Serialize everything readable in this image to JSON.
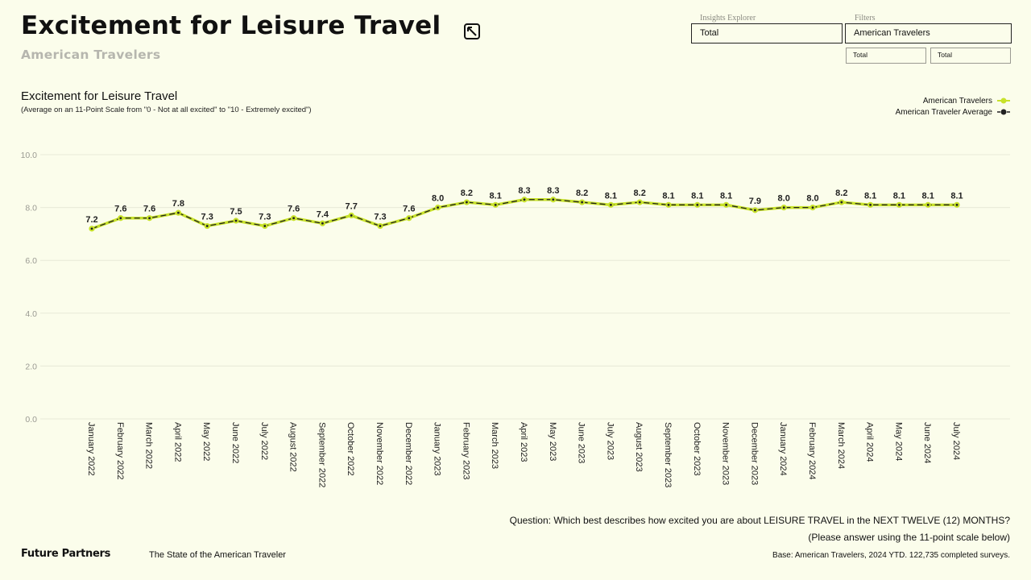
{
  "header": {
    "title": "Excitement for Leisure Travel",
    "subtitle": "American Travelers"
  },
  "controls": {
    "insights_label": "Insights Explorer",
    "insights_value": "Total",
    "filters_label": "Filters",
    "filters_value": "American Travelers",
    "sub_filter_1": "Total",
    "sub_filter_2": "Total"
  },
  "icons": {
    "expand": "expand-icon"
  },
  "colors": {
    "background": "#fbfdeb",
    "series_primary": "#c8e22a",
    "series_average": "#222222",
    "grid": "#e8ead8"
  },
  "chart_data": {
    "type": "line",
    "title": "Excitement for Leisure Travel",
    "subtitle": "(Average on an 11-Point Scale from \"0 - Not at all excited\" to \"10 - Extremely excited\")",
    "ylim": [
      0,
      10
    ],
    "yticks": [
      "0.0",
      "2.0",
      "4.0",
      "6.0",
      "8.0",
      "10.0"
    ],
    "grid": true,
    "legend_position": "top-right",
    "categories": [
      "January 2022",
      "February 2022",
      "March 2022",
      "April 2022",
      "May 2022",
      "June 2022",
      "July 2022",
      "August 2022",
      "September 2022",
      "October 2022",
      "November 2022",
      "December 2022",
      "January 2023",
      "February 2023",
      "March 2023",
      "April 2023",
      "May 2023",
      "June 2023",
      "July 2023",
      "August 2023",
      "September 2023",
      "October 2023",
      "November 2023",
      "December 2023",
      "January 2024",
      "February 2024",
      "March 2024",
      "April 2024",
      "May 2024",
      "June 2024",
      "July 2024"
    ],
    "series": [
      {
        "name": "American Travelers",
        "color": "#c8e22a",
        "style": "solid",
        "values": [
          7.2,
          7.6,
          7.6,
          7.8,
          7.3,
          7.5,
          7.3,
          7.6,
          7.4,
          7.7,
          7.3,
          7.6,
          8.0,
          8.2,
          8.1,
          8.3,
          8.3,
          8.2,
          8.1,
          8.2,
          8.1,
          8.1,
          8.1,
          7.9,
          8.0,
          8.0,
          8.2,
          8.1,
          8.1,
          8.1,
          8.1
        ]
      },
      {
        "name": "American Traveler Average",
        "color": "#222222",
        "style": "dashed",
        "values": [
          7.2,
          7.6,
          7.6,
          7.8,
          7.3,
          7.5,
          7.3,
          7.6,
          7.4,
          7.7,
          7.3,
          7.6,
          8.0,
          8.2,
          8.1,
          8.3,
          8.3,
          8.2,
          8.1,
          8.2,
          8.1,
          8.1,
          8.1,
          7.9,
          8.0,
          8.0,
          8.2,
          8.1,
          8.1,
          8.1,
          8.1
        ]
      }
    ],
    "data_labels": [
      "7.2",
      "7.6",
      "7.6",
      "7.8",
      "7.3",
      "7.5",
      "7.3",
      "7.6",
      "7.4",
      "7.7",
      "7.3",
      "7.6",
      "8.0",
      "8.2",
      "8.1",
      "8.3",
      "8.3",
      "8.2",
      "8.1",
      "8.2",
      "8.1",
      "8.1",
      "8.1",
      "7.9",
      "8.0",
      "8.0",
      "8.2",
      "8.1",
      "8.1",
      "8.1",
      "8.1"
    ]
  },
  "footer": {
    "question": "Question: Which best describes how excited you are about LEISURE TRAVEL in the NEXT TWELVE  (12) MONTHS?",
    "question_note": "(Please answer using the 11-point scale below)",
    "brand": "Future Partners",
    "report": "The State of the American Traveler",
    "base": "Base: American Travelers, 2024 YTD. 122,735 completed surveys."
  }
}
